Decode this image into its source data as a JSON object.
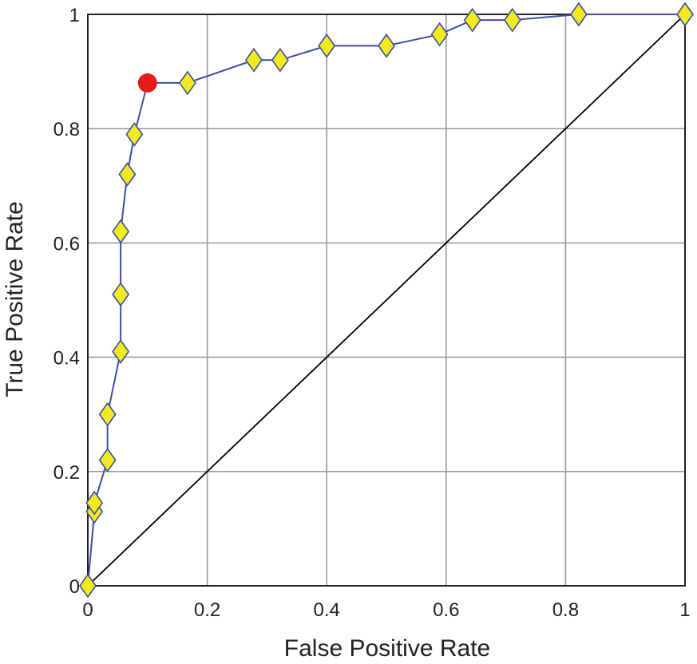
{
  "chart_data": {
    "type": "line",
    "xlabel": "False Positive Rate",
    "ylabel": "True Positive Rate",
    "xlim": [
      0,
      1
    ],
    "ylim": [
      0,
      1
    ],
    "xticks": [
      0,
      0.2,
      0.4,
      0.6,
      0.8,
      1
    ],
    "yticks": [
      0,
      0.2,
      0.4,
      0.6,
      0.8,
      1
    ],
    "xtick_labels": [
      "0",
      "0.2",
      "0.4",
      "0.6",
      "0.8",
      "1"
    ],
    "ytick_labels": [
      "0",
      "0.2",
      "0.4",
      "0.6",
      "0.8",
      "1"
    ],
    "grid": true,
    "series": [
      {
        "marker": "diamond",
        "line_color": "#3a4fa0",
        "marker_fill": "#f2ea1d",
        "marker_edge": "#3a4fa0",
        "x": [
          0,
          0.011,
          0.011,
          0.033,
          0.033,
          0.055,
          0.055,
          0.055,
          0.066,
          0.078,
          0.1,
          0.167,
          0.278,
          0.322,
          0.4,
          0.5,
          0.589,
          0.644,
          0.711,
          0.822,
          1
        ],
        "y": [
          0,
          0.13,
          0.145,
          0.22,
          0.3,
          0.41,
          0.51,
          0.62,
          0.72,
          0.79,
          0.88,
          0.88,
          0.92,
          0.92,
          0.945,
          0.945,
          0.965,
          0.99,
          0.99,
          1,
          1
        ]
      },
      {
        "marker": "none",
        "line_color": "#000000",
        "x": [
          0,
          1
        ],
        "y": [
          0,
          1
        ]
      }
    ],
    "highlight_point": {
      "x": 0.1,
      "y": 0.88,
      "color": "#e8191b"
    }
  }
}
